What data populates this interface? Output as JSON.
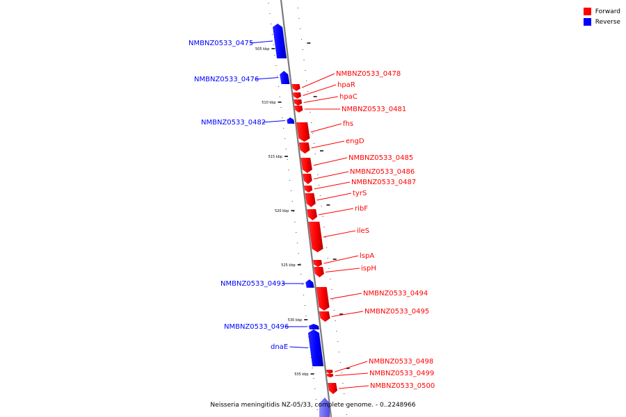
{
  "legend": {
    "forward": {
      "label": "Forward",
      "color": "#ff0000"
    },
    "reverse": {
      "label": "Reverse",
      "color": "#0000ff"
    }
  },
  "caption": "Neisseria meningitidis NZ-05/33, complete genome. - 0..2248966",
  "scale_ticks": [
    "505 kbp",
    "510 kbp",
    "515 kbp",
    "520 kbp",
    "525 kbp",
    "530 kbp",
    "535 kbp"
  ],
  "genes": [
    {
      "name": "NMBNZ0533_0475",
      "strand": "reverse"
    },
    {
      "name": "NMBNZ0533_0476",
      "strand": "reverse"
    },
    {
      "name": "NMBNZ0533_0478",
      "strand": "forward"
    },
    {
      "name": "hpaR",
      "strand": "forward"
    },
    {
      "name": "hpaC",
      "strand": "forward"
    },
    {
      "name": "NMBNZ0533_0481",
      "strand": "forward"
    },
    {
      "name": "NMBNZ0533_0482",
      "strand": "reverse"
    },
    {
      "name": "fhs",
      "strand": "forward"
    },
    {
      "name": "engD",
      "strand": "forward"
    },
    {
      "name": "NMBNZ0533_0485",
      "strand": "forward"
    },
    {
      "name": "NMBNZ0533_0486",
      "strand": "forward"
    },
    {
      "name": "NMBNZ0533_0487",
      "strand": "forward"
    },
    {
      "name": "tyrS",
      "strand": "forward"
    },
    {
      "name": "ribF",
      "strand": "forward"
    },
    {
      "name": "ileS",
      "strand": "forward"
    },
    {
      "name": "lspA",
      "strand": "forward"
    },
    {
      "name": "ispH",
      "strand": "forward"
    },
    {
      "name": "NMBNZ0533_0493",
      "strand": "reverse"
    },
    {
      "name": "NMBNZ0533_0494",
      "strand": "forward"
    },
    {
      "name": "NMBNZ0533_0495",
      "strand": "forward"
    },
    {
      "name": "NMBNZ0533_0496",
      "strand": "reverse"
    },
    {
      "name": "dnaE",
      "strand": "reverse"
    },
    {
      "name": "NMBNZ0533_0498",
      "strand": "forward"
    },
    {
      "name": "NMBNZ0533_0499",
      "strand": "forward"
    },
    {
      "name": "NMBNZ0533_0500",
      "strand": "forward"
    }
  ]
}
